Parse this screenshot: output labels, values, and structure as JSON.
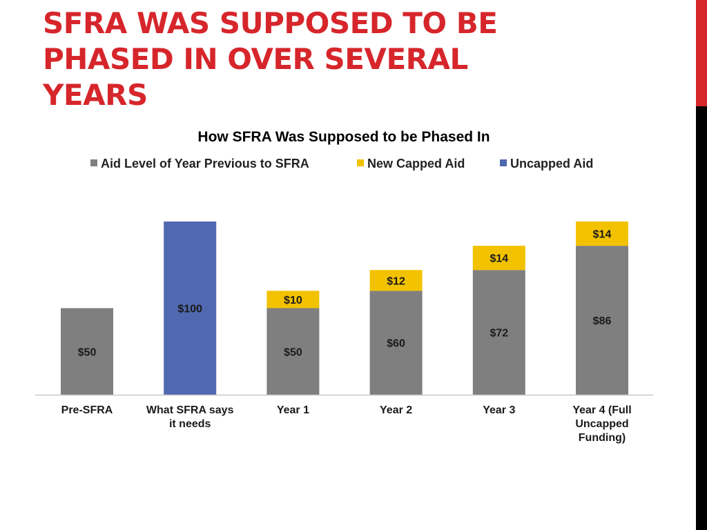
{
  "slide": {
    "title_lines": [
      "SFRA WAS SUPPOSED TO BE",
      "PHASED IN OVER SEVERAL",
      "YEARS"
    ]
  },
  "colors": {
    "title": "#d6262b",
    "accent_bar": "#d6262b",
    "base": "#7f7f7f",
    "capped": "#f2c200",
    "uncapped": "#5068b0"
  },
  "chart_data": {
    "type": "bar",
    "stacked": true,
    "title": "How SFRA Was Supposed to be Phased In",
    "legend_position": "top",
    "categories": [
      [
        "Pre-SFRA"
      ],
      [
        "What SFRA says",
        "it needs"
      ],
      [
        "Year 1"
      ],
      [
        "Year 2"
      ],
      [
        "Year 3"
      ],
      [
        "Year 4 (Full",
        "Uncapped",
        "Funding)"
      ]
    ],
    "series": [
      {
        "name": "Aid Level of Year Previous to SFRA",
        "color_key": "base",
        "values": [
          50,
          null,
          50,
          60,
          72,
          86
        ],
        "labels": [
          "$50",
          "",
          "$50",
          "$60",
          "$72",
          "$86"
        ]
      },
      {
        "name": "New Capped Aid",
        "color_key": "capped",
        "values": [
          null,
          null,
          10,
          12,
          14,
          14
        ],
        "labels": [
          "",
          "",
          "$10",
          "$12",
          "$14",
          "$14"
        ]
      },
      {
        "name": "Uncapped Aid",
        "color_key": "uncapped",
        "values": [
          null,
          100,
          null,
          null,
          null,
          null
        ],
        "labels": [
          "",
          "$100",
          "",
          "",
          "",
          ""
        ]
      }
    ],
    "ylim": [
      0,
      100
    ],
    "grid": false,
    "xlabel": "",
    "ylabel": ""
  }
}
